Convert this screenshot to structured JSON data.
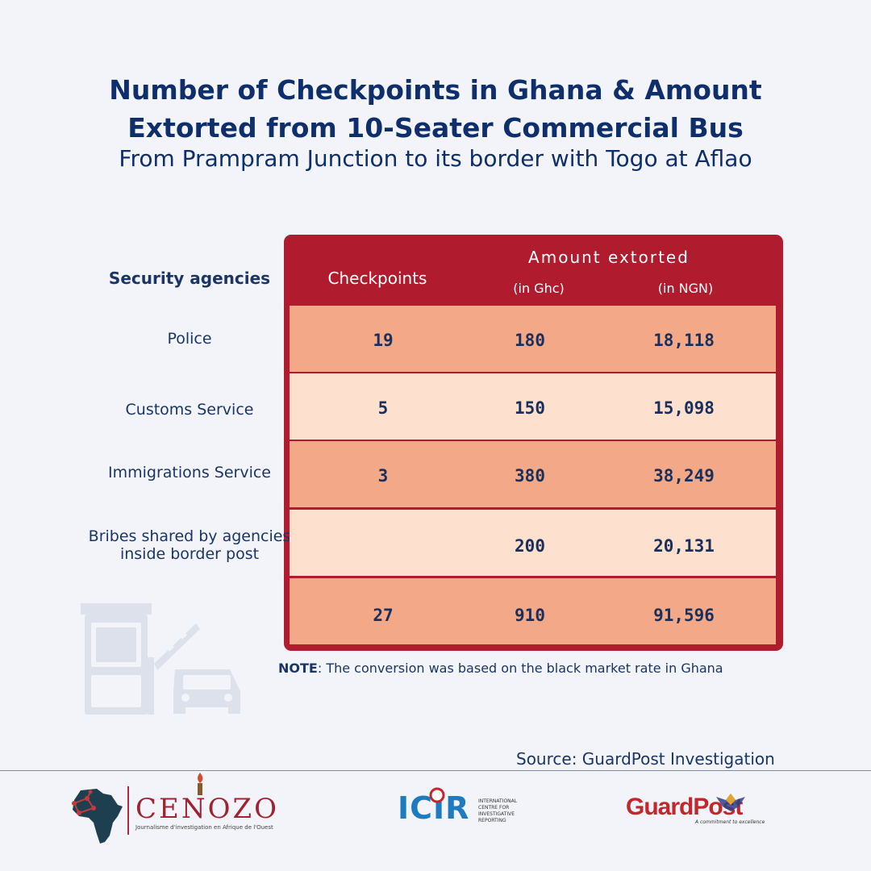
{
  "title_line1": "Number of Checkpoints in Ghana & Amount",
  "title_line2": "Extorted from 10-Seater Commercial Bus",
  "subtitle": "From Prampram Junction to its border with Togo at Aflao",
  "headers": {
    "agencies": "Security agencies",
    "checkpoints": "Checkpoints",
    "amount": "Amount extorted",
    "ghc": "(in Ghc)",
    "ngn": "(in NGN)"
  },
  "chart_data": {
    "type": "table",
    "title": "Number of Checkpoints in Ghana & Amount Extorted from 10-Seater Commercial Bus",
    "subtitle": "From Prampram Junction to its border with Togo at Aflao",
    "columns": [
      "Security agencies",
      "Checkpoints",
      "Amount extorted (in Ghc)",
      "Amount extorted (in NGN)"
    ],
    "rows": [
      {
        "agency": "Police",
        "checkpoints": "19",
        "ghc": "180",
        "ngn": "18,118"
      },
      {
        "agency": "Customs Service",
        "checkpoints": "5",
        "ghc": "150",
        "ngn": "15,098"
      },
      {
        "agency": "Immigrations Service",
        "checkpoints": "3",
        "ghc": "380",
        "ngn": "38,249"
      },
      {
        "agency_line1": "Bribes shared by agencies",
        "agency_line2": "inside border post",
        "checkpoints": "",
        "ghc": "200",
        "ngn": "20,131"
      },
      {
        "agency": "",
        "checkpoints": "27",
        "ghc": "910",
        "ngn": "91,596"
      }
    ]
  },
  "note_label": "NOTE",
  "note_text": ": The conversion was based on the black market rate in Ghana",
  "source": "Source: GuardPost Investigation",
  "logos": {
    "cenozo": "CENOZO",
    "cenozo_tagline": "Journalisme d'investigation en Afrique de l'Ouest",
    "icir": "ICIR",
    "icir_line1": "INTERNATIONAL",
    "icir_line2": "CENTRE FOR",
    "icir_line3": "INVESTIGATIVE",
    "icir_line4": "REPORTING",
    "guardpost": "GuardPost",
    "guardpost_tagline": "A commitment to excellence"
  },
  "colors": {
    "title": "#0e2f6b",
    "table_frame": "#b01b2e",
    "row_dark": "#f3a987",
    "row_light": "#fde0ce",
    "background": "#f3f4fa"
  }
}
